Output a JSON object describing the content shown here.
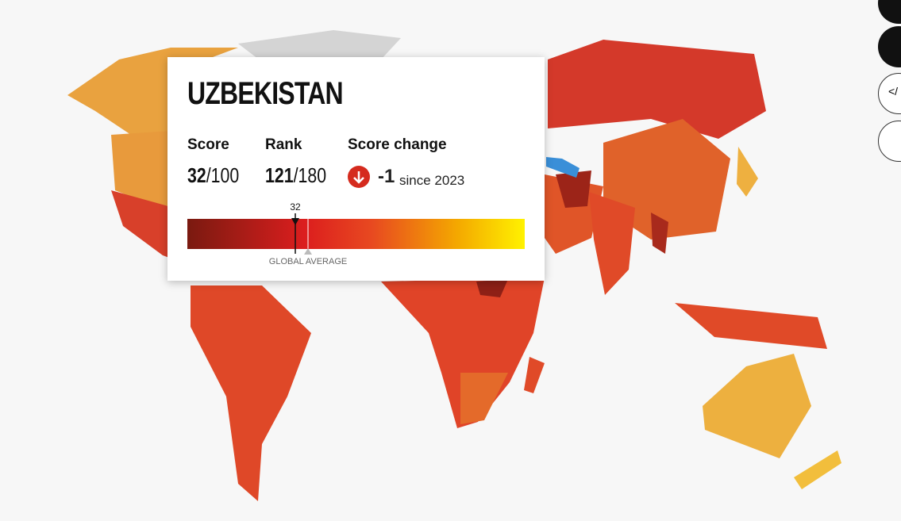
{
  "scorecard": {
    "country": "UZBEKISTAN",
    "score_label": "Score",
    "score": 32,
    "score_max": {
      "value": 100,
      "label": "/100"
    },
    "rank_label": "Rank",
    "rank": 121,
    "rank_max": {
      "value": 180,
      "label": "/180"
    },
    "change_label": "Score change",
    "change": -1,
    "since": "since 2023",
    "average_label": "GLOBAL AVERAGE"
  }
}
